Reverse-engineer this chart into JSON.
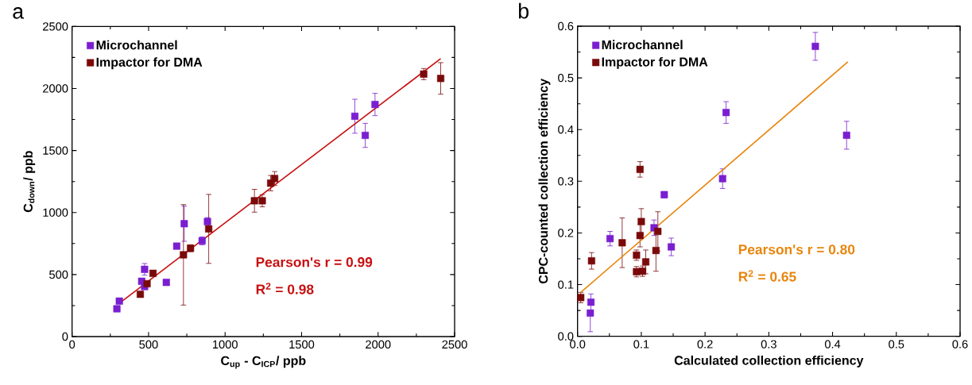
{
  "chart_data": [
    {
      "type": "scatter",
      "title": "a",
      "xlabel": "C$_{up}$ - C$_{ICP}$/ ppb",
      "ylabel": "C$_{down}$/ ppb",
      "xlim": [
        0,
        2500
      ],
      "ylim": [
        0,
        2500
      ],
      "xticks": [
        0,
        500,
        1000,
        1500,
        2000,
        2500
      ],
      "yticks": [
        0,
        500,
        1000,
        1500,
        2000,
        2500
      ],
      "legend": "top left",
      "marker": "square",
      "series": [
        {
          "name": "Microchannel",
          "color": "#7a1fd0",
          "x": [
            293,
            309,
            455,
            474,
            474,
            616,
            684,
            733,
            850,
            885,
            1848,
            1916,
            1980
          ],
          "values": [
            224,
            286,
            446,
            542,
            403,
            437,
            729,
            910,
            772,
            927,
            1776,
            1622,
            1871
          ],
          "errors": [
            null,
            null,
            null,
            47,
            null,
            null,
            null,
            142,
            32,
            32,
            137,
            97,
            90
          ]
        },
        {
          "name": "Impactor for DMA",
          "color": "#7a0a0a",
          "x": [
            446,
            490,
            529,
            728,
            774,
            893,
            1192,
            1243,
            1298,
            1324,
            2298,
            2409
          ],
          "values": [
            341,
            426,
            510,
            659,
            712,
            868,
            1095,
            1095,
            1237,
            1274,
            2116,
            2081
          ],
          "errors": [
            null,
            null,
            null,
            405,
            28,
            278,
            92,
            49,
            62,
            56,
            45,
            127
          ]
        },
        {
          "type": "line",
          "marker": "none",
          "color": "#c80f0f",
          "x": [
            322,
            2409
          ],
          "values": [
            281,
            2240
          ]
        }
      ],
      "annotations": [
        "Pearson's r = 0.99",
        "R$^{2}$ = 0.98"
      ]
    },
    {
      "type": "scatter",
      "title": "b",
      "xlabel": "Calculated collection efficiency",
      "ylabel": "CPC-counted collection efficiency",
      "xlim": [
        0,
        0.6
      ],
      "ylim": [
        0,
        0.6
      ],
      "xticks": [
        {
          "value": 0,
          "label": "0.0"
        },
        {
          "value": 0.1,
          "label": "0.1"
        },
        {
          "value": 0.2,
          "label": "0.2"
        },
        {
          "value": 0.3,
          "label": "0.3"
        },
        {
          "value": 0.4,
          "label": "0.4"
        },
        {
          "value": 0.5,
          "label": "0.5"
        },
        {
          "value": 0.6,
          "label": "0.6"
        }
      ],
      "yticks": [
        {
          "value": 0,
          "label": "0.0"
        },
        {
          "value": 0.1,
          "label": "0.1"
        },
        {
          "value": 0.2,
          "label": "0.2"
        },
        {
          "value": 0.3,
          "label": "0.3"
        },
        {
          "value": 0.4,
          "label": "0.4"
        },
        {
          "value": 0.5,
          "label": "0.5"
        },
        {
          "value": 0.6,
          "label": "0.6"
        }
      ],
      "legend": "top left",
      "marker": "square",
      "series": [
        {
          "name": "Microchannel",
          "color": "#7a1fd0",
          "x": [
            0.021,
            0.02,
            0.051,
            0.12,
            0.136,
            0.147,
            0.2275,
            0.233,
            0.373,
            0.422
          ],
          "values": [
            0.066,
            0.045,
            0.189,
            0.21,
            0.274,
            0.173,
            0.305,
            0.433,
            0.561,
            0.389
          ],
          "errors": [
            0.016,
            [
              0.009,
              0.045
            ],
            0.014,
            0.015,
            0.006,
            0.017,
            0.019,
            0.021,
            0.027,
            0.027
          ]
        },
        {
          "name": "Impactor for DMA",
          "color": "#7a0a0a",
          "x": [
            0.005,
            0.022,
            0.07,
            0.0925,
            0.0925,
            0.102,
            0.098,
            0.1,
            0.107,
            0.126,
            0.123,
            0.098
          ],
          "values": [
            0.075,
            0.146,
            0.181,
            0.157,
            0.125,
            0.126,
            0.195,
            0.222,
            0.144,
            0.203,
            0.166,
            0.323
          ],
          "errors": [
            0.01,
            0.016,
            0.048,
            0.01,
            0.01,
            0.01,
            0.022,
            0.025,
            0.023,
            0.038,
            0.04,
            0.015
          ]
        },
        {
          "type": "line",
          "marker": "none",
          "color": "#e8850c",
          "x": [
            0.005,
            0.424
          ],
          "values": [
            0.085,
            0.531
          ]
        }
      ],
      "annotations": [
        "Pearson's r = 0.80",
        "R$^{2}$ = 0.65"
      ]
    }
  ]
}
